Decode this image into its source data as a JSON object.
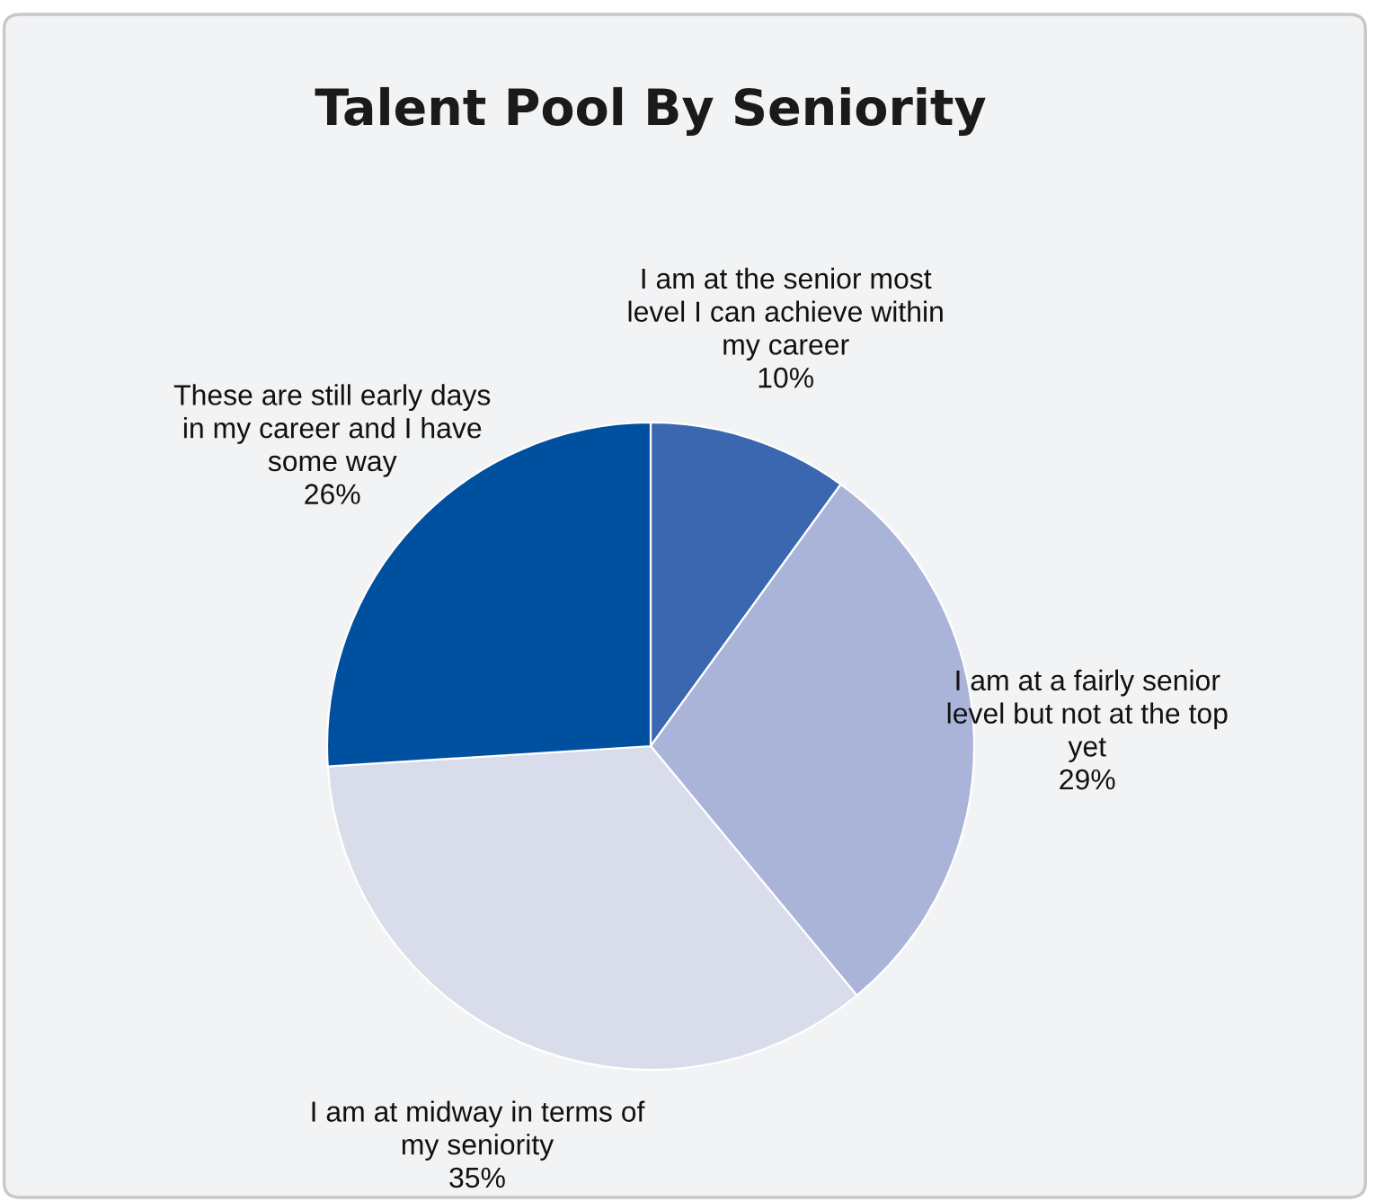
{
  "chart_data": {
    "type": "pie",
    "title": "Talent Pool By Seniority",
    "categories": [
      "I am at the senior most level I can achieve within my career",
      "I am at a fairly senior level but not at the top yet",
      "I am at midway in terms of my seniority",
      "These are still early days in my career and I have some way"
    ],
    "values": [
      10,
      29,
      35,
      26
    ],
    "value_labels": [
      "10%",
      "29%",
      "35%",
      "26%"
    ],
    "colors": [
      "#3a67b0",
      "#a9b4d8",
      "#d9dcea",
      "#0050a0"
    ]
  }
}
